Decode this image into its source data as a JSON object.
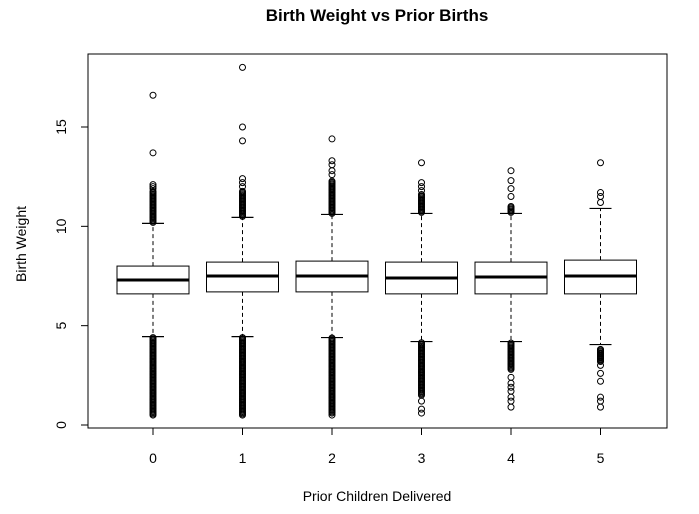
{
  "chart_data": {
    "type": "boxplot",
    "title": "Birth Weight vs Prior Births",
    "xlabel": "Prior Children Delivered",
    "ylabel": "Birth Weight",
    "categories": [
      "0",
      "1",
      "2",
      "3",
      "4",
      "5"
    ],
    "ylim": [
      0,
      18.2
    ],
    "yticks": [
      0,
      5,
      10,
      15
    ],
    "grid": false,
    "boxes": [
      {
        "category": "0",
        "q1": 6.6,
        "median": 7.3,
        "q3": 8.0,
        "whisker_low": 4.45,
        "whisker_high": 10.15,
        "outliers_low_dense": [
          0.5,
          4.45
        ],
        "outliers_high_dense": [
          10.2,
          11.8
        ],
        "outliers": [
          16.6,
          13.7,
          12.1,
          12.0,
          11.9
        ]
      },
      {
        "category": "1",
        "q1": 6.7,
        "median": 7.5,
        "q3": 8.2,
        "whisker_low": 4.45,
        "whisker_high": 10.45,
        "outliers_low_dense": [
          0.5,
          4.45
        ],
        "outliers_high_dense": [
          10.5,
          11.8
        ],
        "outliers": [
          18.0,
          15.0,
          14.3,
          12.4,
          12.2,
          12.0
        ]
      },
      {
        "category": "2",
        "q1": 6.7,
        "median": 7.5,
        "q3": 8.25,
        "whisker_low": 4.4,
        "whisker_high": 10.6,
        "outliers_low_dense": [
          0.6,
          4.4
        ],
        "outliers_high_dense": [
          10.65,
          12.3
        ],
        "outliers": [
          14.4,
          13.3,
          13.1,
          12.8,
          12.6,
          0.5
        ]
      },
      {
        "category": "3",
        "q1": 6.6,
        "median": 7.4,
        "q3": 8.2,
        "whisker_low": 4.2,
        "whisker_high": 10.65,
        "outliers_low_dense": [
          1.5,
          4.15
        ],
        "outliers_high_dense": [
          10.7,
          11.6
        ],
        "outliers": [
          13.2,
          12.2,
          12.0,
          11.8,
          1.2,
          0.8,
          0.6
        ]
      },
      {
        "category": "4",
        "q1": 6.6,
        "median": 7.45,
        "q3": 8.2,
        "whisker_low": 4.2,
        "whisker_high": 10.65,
        "outliers_low_dense": [
          2.8,
          4.15
        ],
        "outliers_high_dense": [
          10.7,
          11.0
        ],
        "outliers": [
          12.8,
          12.3,
          11.9,
          11.5,
          2.4,
          2.1,
          1.9,
          1.7,
          1.4,
          1.2,
          0.9
        ]
      },
      {
        "category": "5",
        "q1": 6.6,
        "median": 7.5,
        "q3": 8.3,
        "whisker_low": 4.05,
        "whisker_high": 10.9,
        "outliers_low_dense": [
          3.2,
          3.8
        ],
        "outliers_high_dense": [],
        "outliers": [
          13.2,
          11.7,
          11.5,
          11.2,
          3.8,
          3.6,
          3.4,
          3.2,
          3.0,
          2.6,
          2.2,
          1.4,
          1.2,
          0.9
        ]
      }
    ]
  }
}
